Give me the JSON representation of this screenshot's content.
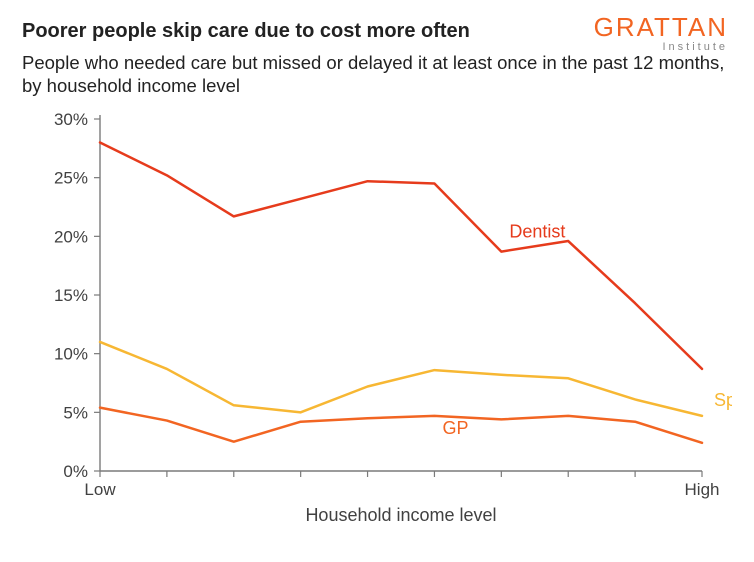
{
  "brand": {
    "name": "GRATTAN",
    "sub": "Institute",
    "color": "#f26522",
    "sub_color": "#888888"
  },
  "title": "Poorer people skip care due to cost more often",
  "subtitle": "People who needed care but missed or delayed it at least once in the past 12 months, by household income level",
  "chart": {
    "type": "line",
    "background_color": "#ffffff",
    "font_family": "Arial",
    "title_fontsize": 20,
    "subtitle_fontsize": 18.5,
    "label_fontsize": 18,
    "tick_fontsize": 17,
    "axis_color": "#7a7a7a",
    "tick_color": "#7a7a7a",
    "tick_length": 6,
    "ylim": [
      0,
      30
    ],
    "ytick_step": 5,
    "y_suffix": "%",
    "x_categories_count": 10,
    "x_tick_labels": {
      "first": "Low",
      "last": "High"
    },
    "x_axis_label": "Household income level",
    "line_width": 2.5,
    "series": [
      {
        "name": "Dentist",
        "color": "#e63b1c",
        "values": [
          28.0,
          25.2,
          21.7,
          23.2,
          24.7,
          24.5,
          18.7,
          19.6,
          14.3,
          8.7
        ],
        "label_at_index": 6,
        "label_dy": -14
      },
      {
        "name": "Specialist",
        "color": "#f7b733",
        "values": [
          11.0,
          8.7,
          5.6,
          5.0,
          7.2,
          8.6,
          8.2,
          7.9,
          6.1,
          4.7
        ],
        "label_at_index": 9,
        "label_dx": 12,
        "label_dy": -10
      },
      {
        "name": "GP",
        "color": "#f26522",
        "values": [
          5.4,
          4.3,
          2.5,
          4.2,
          4.5,
          4.7,
          4.4,
          4.7,
          4.2,
          2.4
        ],
        "label_at_index": 5,
        "label_dy": 18
      }
    ]
  }
}
